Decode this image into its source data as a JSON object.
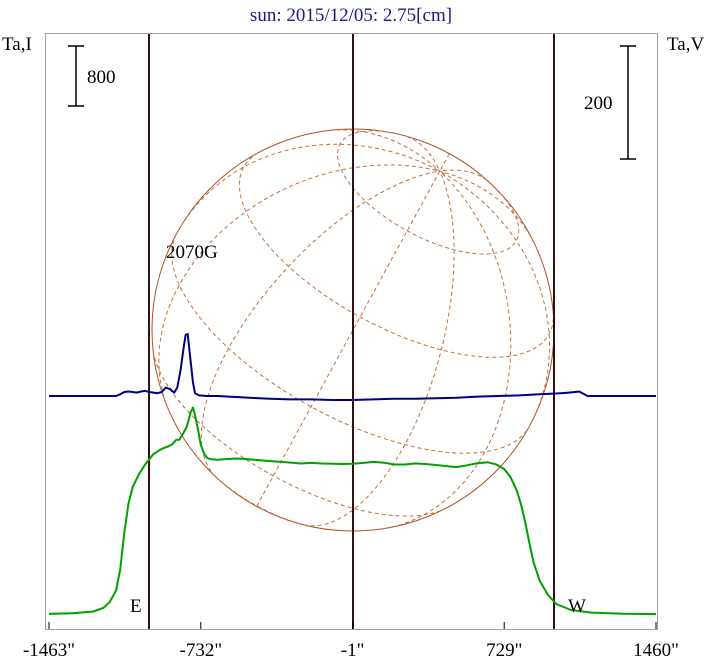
{
  "chart_data": {
    "type": "line",
    "title": "sun: 2015/12/05: 2.75[cm]",
    "left_axis_label": "Ta,I",
    "right_axis_label": "Ta,V",
    "x_ticks": [
      {
        "value": -1463,
        "label": "-1463\""
      },
      {
        "value": -732,
        "label": "-732\""
      },
      {
        "value": -1,
        "label": "-1\""
      },
      {
        "value": 729,
        "label": "729\""
      },
      {
        "value": 1460,
        "label": "1460\""
      }
    ],
    "xlim": [
      -1463,
      1460
    ],
    "scale_bars": [
      {
        "label": "800",
        "side": "left",
        "series": "Ta,I"
      },
      {
        "label": "200",
        "side": "right",
        "series": "Ta,V"
      }
    ],
    "limb_markers": [
      {
        "label": "E",
        "x": -1100
      },
      {
        "label": "W",
        "x": 1100
      }
    ],
    "annotations": [
      {
        "label": "2070G",
        "x": -795
      }
    ],
    "series": [
      {
        "id": "intensity",
        "color": "#00a000",
        "points": [
          [
            -1463,
            7.5
          ],
          [
            -1350,
            16
          ],
          [
            -1250,
            40
          ],
          [
            -1200,
            90
          ],
          [
            -1170,
            170
          ],
          [
            -1140,
            320
          ],
          [
            -1120,
            600
          ],
          [
            -1100,
            1100
          ],
          [
            -1080,
            1480
          ],
          [
            -1060,
            1700
          ],
          [
            -1030,
            1870
          ],
          [
            -1000,
            2000
          ],
          [
            -960,
            2140
          ],
          [
            -920,
            2210
          ],
          [
            -890,
            2240
          ],
          [
            -870,
            2270
          ],
          [
            -850,
            2330
          ],
          [
            -835,
            2330
          ],
          [
            -820,
            2400
          ],
          [
            -800,
            2500
          ],
          [
            -790,
            2600
          ],
          [
            -780,
            2700
          ],
          [
            -770,
            2760
          ],
          [
            -760,
            2660
          ],
          [
            -745,
            2460
          ],
          [
            -732,
            2260
          ],
          [
            -715,
            2140
          ],
          [
            -700,
            2085
          ],
          [
            -680,
            2070
          ],
          [
            -650,
            2063
          ],
          [
            -620,
            2070
          ],
          [
            -560,
            2080
          ],
          [
            -500,
            2070
          ],
          [
            -440,
            2055
          ],
          [
            -380,
            2042
          ],
          [
            -320,
            2030
          ],
          [
            -250,
            2014
          ],
          [
            -200,
            2021
          ],
          [
            -150,
            2014
          ],
          [
            -100,
            2010
          ],
          [
            -50,
            2007
          ],
          [
            0,
            2010
          ],
          [
            50,
            2021
          ],
          [
            100,
            2035
          ],
          [
            150,
            2024
          ],
          [
            200,
            2000
          ],
          [
            250,
            2000
          ],
          [
            300,
            2014
          ],
          [
            350,
            2007
          ],
          [
            400,
            1993
          ],
          [
            450,
            1979
          ],
          [
            500,
            1965
          ],
          [
            550,
            1990
          ],
          [
            600,
            2017
          ],
          [
            650,
            2030
          ],
          [
            690,
            2002
          ],
          [
            729,
            1940
          ],
          [
            760,
            1830
          ],
          [
            790,
            1650
          ],
          [
            810,
            1470
          ],
          [
            830,
            1230
          ],
          [
            850,
            960
          ],
          [
            870,
            700
          ],
          [
            900,
            450
          ],
          [
            940,
            260
          ],
          [
            980,
            140
          ],
          [
            1050,
            60
          ],
          [
            1150,
            25
          ],
          [
            1300,
            10
          ],
          [
            1460,
            5
          ]
        ]
      },
      {
        "id": "circular_polarization",
        "color": "#000080",
        "points": [
          [
            -1463,
            0
          ],
          [
            -1300,
            0
          ],
          [
            -1140,
            0
          ],
          [
            -1120,
            3
          ],
          [
            -1100,
            7
          ],
          [
            -1080,
            8
          ],
          [
            -1060,
            7
          ],
          [
            -1040,
            6
          ],
          [
            -1020,
            8
          ],
          [
            -1000,
            9
          ],
          [
            -980,
            7
          ],
          [
            -960,
            6
          ],
          [
            -940,
            5
          ],
          [
            -920,
            7
          ],
          [
            -900,
            15
          ],
          [
            -880,
            12
          ],
          [
            -860,
            6
          ],
          [
            -845,
            15
          ],
          [
            -830,
            45
          ],
          [
            -815,
            85
          ],
          [
            -805,
            108
          ],
          [
            -795,
            110
          ],
          [
            -785,
            75
          ],
          [
            -770,
            25
          ],
          [
            -760,
            5
          ],
          [
            -740,
            1
          ],
          [
            -700,
            0
          ],
          [
            -650,
            0
          ],
          [
            -600,
            -1
          ],
          [
            -550,
            -2
          ],
          [
            -500,
            -3
          ],
          [
            -450,
            -4
          ],
          [
            -400,
            -5
          ],
          [
            -300,
            -6
          ],
          [
            -200,
            -6
          ],
          [
            -100,
            -7
          ],
          [
            0,
            -7
          ],
          [
            100,
            -6
          ],
          [
            200,
            -5
          ],
          [
            300,
            -5
          ],
          [
            400,
            -4
          ],
          [
            500,
            -3
          ],
          [
            600,
            -1
          ],
          [
            700,
            0
          ],
          [
            800,
            1
          ],
          [
            900,
            3
          ],
          [
            1000,
            5
          ],
          [
            1040,
            6
          ],
          [
            1070,
            7
          ],
          [
            1090,
            8
          ],
          [
            1100,
            6
          ],
          [
            1115,
            3
          ],
          [
            1130,
            0
          ],
          [
            1300,
            0
          ],
          [
            1460,
            0
          ]
        ]
      }
    ]
  }
}
